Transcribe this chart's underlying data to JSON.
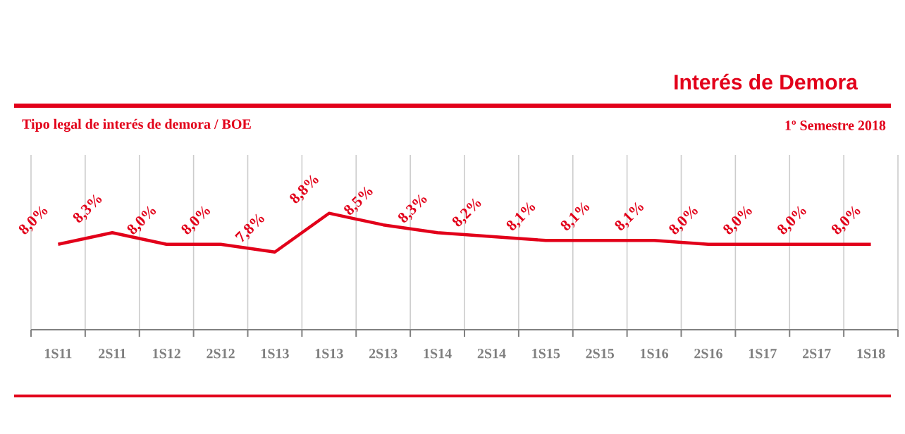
{
  "chart_data": {
    "type": "line",
    "title": "Interés de Demora",
    "subtitle": "Tipo legal de interés de demora / BOE",
    "annotations": [
      "1º Semestre 2018"
    ],
    "categories": [
      "1S11",
      "2S11",
      "1S12",
      "2S12",
      "1S13",
      "1S13",
      "2S13",
      "1S14",
      "2S14",
      "1S15",
      "2S15",
      "1S16",
      "2S16",
      "1S17",
      "2S17",
      "1S18"
    ],
    "series": [
      {
        "color": "#e2001a",
        "values": [
          8.0,
          8.3,
          8.0,
          8.0,
          7.8,
          8.8,
          8.5,
          8.3,
          8.2,
          8.1,
          8.1,
          8.1,
          8.0,
          8.0,
          8.0,
          8.0
        ],
        "value_labels": [
          "8,0%",
          "8,3%",
          "8,0%",
          "8,0%",
          "7,8%",
          "8,8%",
          "8,5%",
          "8,3%",
          "8,2%",
          "8,1%",
          "8,1%",
          "8,1%",
          "8,0%",
          "8,0%",
          "8,0%",
          "8,0%"
        ]
      }
    ],
    "grid": "x"
  }
}
